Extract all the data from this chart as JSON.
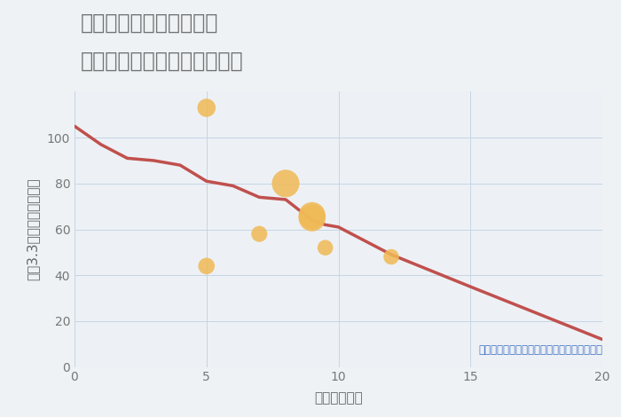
{
  "title_line1": "福岡県太宰府市通古賀の",
  "title_line2": "駅距離別中古マンション価格",
  "xlabel": "駅距離（分）",
  "ylabel": "坪（3.3㎡）単価（万円）",
  "fig_bg_color": "#eef2f5",
  "ax_bg_color": "#edf1f5",
  "line_color": "#c0504d",
  "line_x": [
    0,
    1,
    2,
    3,
    4,
    5,
    5.5,
    6,
    7,
    8,
    9,
    9.5,
    10,
    12,
    15,
    20
  ],
  "line_y": [
    105,
    97,
    91,
    90,
    88,
    81,
    80,
    79,
    74,
    73,
    64,
    62,
    61,
    49,
    35,
    12
  ],
  "scatter_x": [
    5,
    5,
    8,
    7,
    9,
    9,
    9.5,
    12
  ],
  "scatter_y": [
    113,
    44,
    80,
    58,
    66,
    65,
    52,
    48
  ],
  "scatter_sizes": [
    220,
    180,
    500,
    170,
    480,
    480,
    160,
    160
  ],
  "scatter_color": "#f0b955",
  "scatter_alpha": 0.85,
  "annotation": "円の大きさは、取引のあった物件面積を示す",
  "annotation_color": "#4472c4",
  "xlim": [
    0,
    20
  ],
  "ylim": [
    0,
    120
  ],
  "xticks": [
    0,
    5,
    10,
    15,
    20
  ],
  "yticks": [
    0,
    20,
    40,
    60,
    80,
    100
  ],
  "title_color": "#737373",
  "title_fontsize": 17,
  "label_fontsize": 11,
  "tick_fontsize": 10,
  "grid_color": "#c5d5e5",
  "line_width": 2.5
}
